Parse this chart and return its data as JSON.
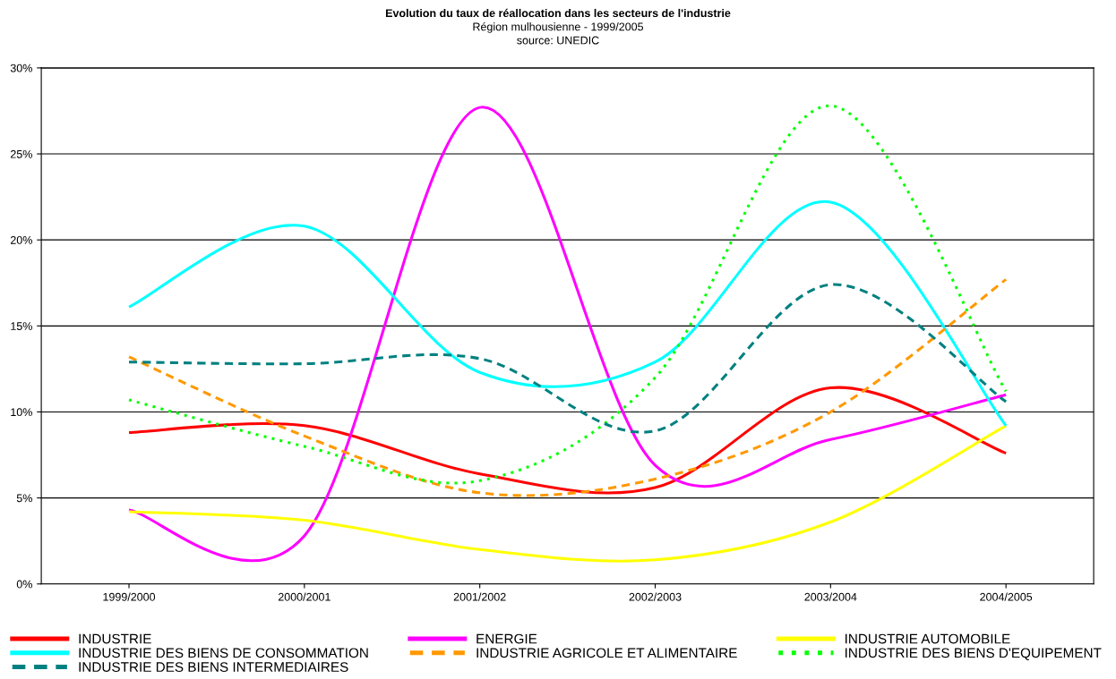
{
  "chart_data": {
    "type": "line",
    "title": "Evolution du taux de réallocation dans les secteurs de l'industrie",
    "subtitle": "Région mulhousienne - 1999/2005",
    "annotations": [
      "source: UNEDIC"
    ],
    "categories": [
      "1999/2000",
      "2000/2001",
      "2001/2002",
      "2002/2003",
      "2003/2004",
      "2004/2005"
    ],
    "series": [
      {
        "name": "INDUSTRIE",
        "color": "#ff0000",
        "line_style": "solid",
        "values": [
          8.8,
          9.2,
          6.4,
          5.6,
          11.4,
          7.6
        ]
      },
      {
        "name": "ENERGIE",
        "color": "#ff00ff",
        "line_style": "solid",
        "values": [
          4.3,
          2.8,
          27.7,
          6.9,
          8.4,
          11.0
        ]
      },
      {
        "name": "INDUSTRIE AUTOMOBILE",
        "color": "#ffff00",
        "line_style": "solid",
        "values": [
          4.2,
          3.7,
          2.0,
          1.4,
          3.6,
          9.2
        ]
      },
      {
        "name": "INDUSTRIE DES BIENS DE CONSOMMATION",
        "color": "#00ffff",
        "line_style": "solid",
        "values": [
          16.1,
          20.8,
          12.3,
          12.9,
          22.2,
          9.2
        ]
      },
      {
        "name": "INDUSTRIE AGRICOLE ET ALIMENTAIRE",
        "color": "#ff9900",
        "line_style": "dashed",
        "values": [
          13.2,
          8.6,
          5.3,
          6.1,
          10.0,
          17.7
        ]
      },
      {
        "name": "INDUSTRIE DES BIENS D'EQUIPEMENT",
        "color": "#00ff00",
        "line_style": "dotted",
        "values": [
          10.7,
          8.0,
          6.0,
          12.0,
          27.8,
          11.2
        ]
      },
      {
        "name": "INDUSTRIE DES BIENS INTERMEDIAIRES",
        "color": "#008080",
        "line_style": "dashed",
        "values": [
          12.9,
          12.8,
          13.1,
          8.9,
          17.4,
          10.6
        ]
      }
    ],
    "ylim": [
      0,
      30
    ],
    "yticks": [
      {
        "value": 0,
        "label": "0%"
      },
      {
        "value": 5,
        "label": "5%"
      },
      {
        "value": 10,
        "label": "10%"
      },
      {
        "value": 15,
        "label": "15%"
      },
      {
        "value": 20,
        "label": "20%"
      },
      {
        "value": 25,
        "label": "25%"
      },
      {
        "value": 30,
        "label": "30%"
      }
    ],
    "grid": "y",
    "legend": "bottom",
    "marker": "none"
  }
}
